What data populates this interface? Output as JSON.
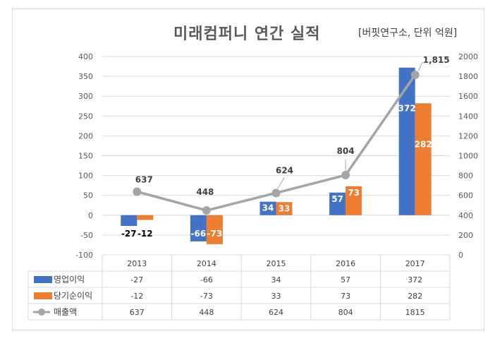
{
  "chart_data": {
    "type": "bar",
    "title": "미래컴퍼니 연간 실적",
    "subtitle": "[버핏연구소, 단위 억원]",
    "categories": [
      "2013",
      "2014",
      "2015",
      "2016",
      "2017"
    ],
    "series": [
      {
        "name": "영업이익",
        "type": "bar",
        "axis": "left",
        "color": "#4472c4",
        "values": [
          -27,
          -66,
          34,
          57,
          372
        ],
        "labels": [
          "-27",
          "-66",
          "34",
          "57",
          "372"
        ]
      },
      {
        "name": "당기순이익",
        "type": "bar",
        "axis": "left",
        "color": "#ed7d31",
        "values": [
          -12,
          -73,
          33,
          73,
          282
        ],
        "labels": [
          "-12",
          "-73",
          "33",
          "73",
          "282"
        ]
      },
      {
        "name": "매출액",
        "type": "line",
        "axis": "right",
        "color": "#a5a5a5",
        "values": [
          637,
          448,
          624,
          804,
          1815
        ],
        "labels": [
          "637",
          "448",
          "624",
          "804",
          "1,815"
        ]
      }
    ],
    "y_left": {
      "min": -100,
      "max": 400,
      "step": 50,
      "ticks": [
        "-100",
        "-50",
        "0",
        "50",
        "100",
        "150",
        "200",
        "250",
        "300",
        "350",
        "400"
      ]
    },
    "y_right": {
      "min": 0,
      "max": 2000,
      "step": 200,
      "ticks": [
        "0",
        "200",
        "400",
        "600",
        "800",
        "1000",
        "1200",
        "1400",
        "1600",
        "1800",
        "2000"
      ]
    },
    "data_table": [
      {
        "legend": "영업이익",
        "cells": [
          "-27",
          "-66",
          "34",
          "57",
          "372"
        ]
      },
      {
        "legend": "당기순이익",
        "cells": [
          "-12",
          "-73",
          "33",
          "73",
          "282"
        ]
      },
      {
        "legend": "매출액",
        "cells": [
          "637",
          "448",
          "624",
          "804",
          "1815"
        ]
      }
    ],
    "grid": true
  }
}
